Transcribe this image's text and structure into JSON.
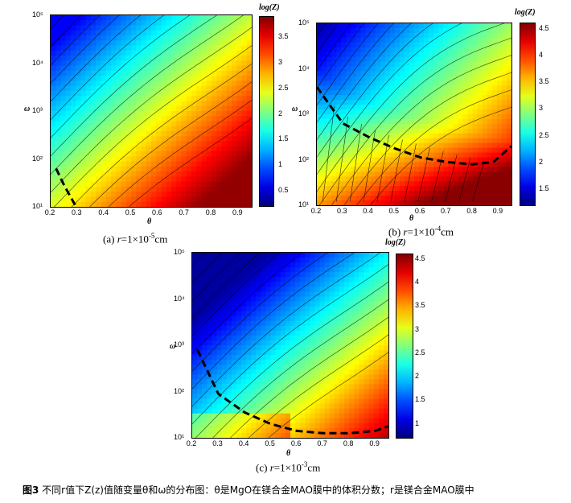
{
  "chart_data": [
    {
      "type": "heatmap",
      "panel": "a",
      "caption_prefix": "(a) ",
      "caption_var": "r",
      "caption_eq": "=1×10",
      "caption_exp": "-5",
      "caption_unit": "cm",
      "xlabel": "θ",
      "ylabel": "ω",
      "colorbar_title": "log(Z)",
      "x_ticks": [
        "0.2",
        "0.3",
        "0.4",
        "0.5",
        "0.6",
        "0.7",
        "0.8",
        "0.9"
      ],
      "y_ticks": [
        "10¹",
        "10²",
        "10³",
        "10⁴",
        "10⁵"
      ],
      "colorbar_ticks": [
        "3.5",
        "3",
        "2.5",
        "2",
        "1.5",
        "1",
        "0.5"
      ],
      "xlim": [
        0.2,
        0.95
      ],
      "ylim_log10": [
        1,
        5
      ],
      "zlim": [
        0.2,
        3.9
      ],
      "low": 0.2,
      "high": 3.9,
      "dashed_boundary": [
        [
          0.22,
          1.8
        ],
        [
          0.25,
          1.45
        ],
        [
          0.28,
          1.15
        ],
        [
          0.31,
          0.85
        ]
      ]
    },
    {
      "type": "heatmap",
      "panel": "b",
      "caption_prefix": "(b) ",
      "caption_var": "r",
      "caption_eq": "=1×10",
      "caption_exp": "-4",
      "caption_unit": "cm",
      "xlabel": "θ",
      "ylabel": "ω",
      "colorbar_title": "log(Z)",
      "x_ticks": [
        "0.2",
        "0.3",
        "0.4",
        "0.5",
        "0.6",
        "0.7",
        "0.8",
        "0.9"
      ],
      "y_ticks": [
        "10¹",
        "10²",
        "10³",
        "10⁴",
        "10⁵"
      ],
      "colorbar_ticks": [
        "4.5",
        "4",
        "3.5",
        "3",
        "2.5",
        "2",
        "1.5"
      ],
      "xlim": [
        0.2,
        0.95
      ],
      "ylim_log10": [
        1,
        5
      ],
      "zlim": [
        1.2,
        4.6
      ],
      "low": 1.2,
      "high": 4.6,
      "dashed_boundary": [
        [
          0.2,
          3.6
        ],
        [
          0.3,
          2.8
        ],
        [
          0.4,
          2.5
        ],
        [
          0.5,
          2.25
        ],
        [
          0.6,
          2.05
        ],
        [
          0.7,
          1.95
        ],
        [
          0.8,
          1.9
        ],
        [
          0.88,
          1.95
        ],
        [
          0.95,
          2.3
        ]
      ]
    },
    {
      "type": "heatmap",
      "panel": "c",
      "caption_prefix": "(c) ",
      "caption_var": "r",
      "caption_eq": "=1×10",
      "caption_exp": "-3",
      "caption_unit": "cm",
      "xlabel": "θ",
      "ylabel": "ω",
      "colorbar_title": "log(Z)",
      "x_ticks": [
        "0.2",
        "0.3",
        "0.4",
        "0.5",
        "0.6",
        "0.7",
        "0.8",
        "0.9"
      ],
      "y_ticks": [
        "10¹",
        "10²",
        "10³",
        "10⁴",
        "10⁵"
      ],
      "colorbar_ticks": [
        "4.5",
        "4",
        "3.5",
        "3",
        "2.5",
        "2",
        "1.5",
        "1"
      ],
      "xlim": [
        0.2,
        0.95
      ],
      "ylim_log10": [
        1,
        5
      ],
      "zlim": [
        0.7,
        4.6
      ],
      "low": 0.7,
      "high": 4.6,
      "dashed_boundary": [
        [
          0.22,
          2.9
        ],
        [
          0.3,
          1.95
        ],
        [
          0.4,
          1.55
        ],
        [
          0.5,
          1.3
        ],
        [
          0.6,
          1.15
        ],
        [
          0.7,
          1.1
        ],
        [
          0.8,
          1.1
        ],
        [
          0.9,
          1.15
        ],
        [
          0.95,
          1.25
        ]
      ]
    }
  ],
  "figure_caption": {
    "label": "图3",
    "text": " 不同r值下Z(z)值随变量θ和ω的分布图：θ是MgO在镁合金MAO膜中的体积分数；r是镁合金MAO膜中"
  }
}
